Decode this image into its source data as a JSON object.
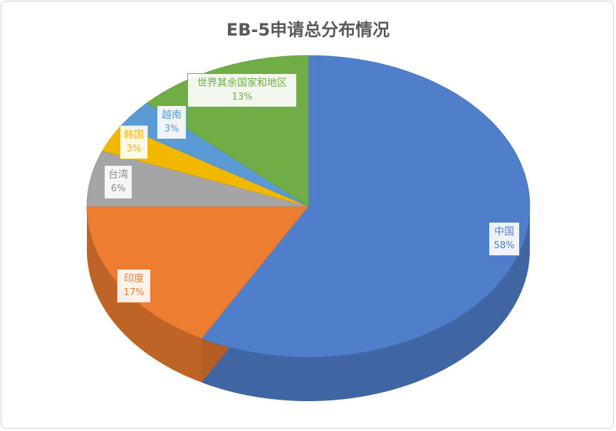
{
  "chart_data": {
    "type": "pie",
    "style": "3d",
    "title": "EB-5申请总分布情况",
    "categories": [
      "中国",
      "印度",
      "台湾",
      "韩国",
      "越南",
      "世界其余国家和地区"
    ],
    "values": [
      58,
      17,
      6,
      3,
      3,
      13
    ],
    "labels": [
      "58%",
      "17%",
      "6%",
      "3%",
      "3%",
      "13%"
    ],
    "colors": [
      "#4F7FCB",
      "#ED7D31",
      "#A5A5A5",
      "#F2B800",
      "#5B9BD5",
      "#70AD47"
    ],
    "legend": "none"
  }
}
